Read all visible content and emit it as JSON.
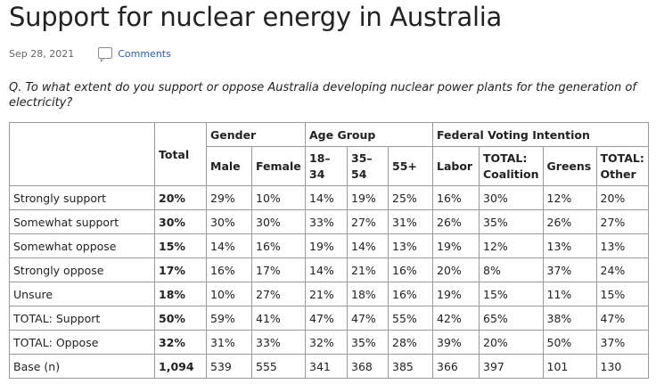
{
  "page": {
    "title": "Support for nuclear energy in Australia",
    "date": "Sep 28, 2021",
    "comments_label": "Comments",
    "question": "Q. To what extent do you support or oppose Australia developing nuclear power plants for the generation of electricity?"
  },
  "table": {
    "total_header": "Total",
    "groups": {
      "gender": "Gender",
      "age": "Age Group",
      "vote": "Federal Voting Intention"
    },
    "subheaders": {
      "male": "Male",
      "female": "Female",
      "age_18_34": "18–34",
      "age_35_54": "35–54",
      "age_55": "55+",
      "labor": "Labor",
      "coalition": "TOTAL: Coalition",
      "greens": "Greens",
      "other": "TOTAL: Other"
    },
    "rows": [
      {
        "label": "Strongly support",
        "values": [
          "20%",
          "29%",
          "10%",
          "14%",
          "19%",
          "25%",
          "16%",
          "30%",
          "12%",
          "20%"
        ]
      },
      {
        "label": "Somewhat support",
        "values": [
          "30%",
          "30%",
          "30%",
          "33%",
          "27%",
          "31%",
          "26%",
          "35%",
          "26%",
          "27%"
        ]
      },
      {
        "label": "Somewhat oppose",
        "values": [
          "15%",
          "14%",
          "16%",
          "19%",
          "14%",
          "13%",
          "19%",
          "12%",
          "13%",
          "13%"
        ]
      },
      {
        "label": "Strongly oppose",
        "values": [
          "17%",
          "16%",
          "17%",
          "14%",
          "21%",
          "16%",
          "20%",
          "8%",
          "37%",
          "24%"
        ]
      },
      {
        "label": "Unsure",
        "values": [
          "18%",
          "10%",
          "27%",
          "21%",
          "18%",
          "16%",
          "19%",
          "15%",
          "11%",
          "15%"
        ]
      },
      {
        "label": "TOTAL: Support",
        "values": [
          "50%",
          "59%",
          "41%",
          "47%",
          "47%",
          "55%",
          "42%",
          "65%",
          "38%",
          "47%"
        ]
      },
      {
        "label": "TOTAL: Oppose",
        "values": [
          "32%",
          "31%",
          "33%",
          "32%",
          "35%",
          "28%",
          "39%",
          "20%",
          "50%",
          "37%"
        ]
      },
      {
        "label": "Base (n)",
        "values": [
          "1,094",
          "539",
          "555",
          "341",
          "368",
          "385",
          "366",
          "397",
          "101",
          "130"
        ]
      }
    ]
  }
}
